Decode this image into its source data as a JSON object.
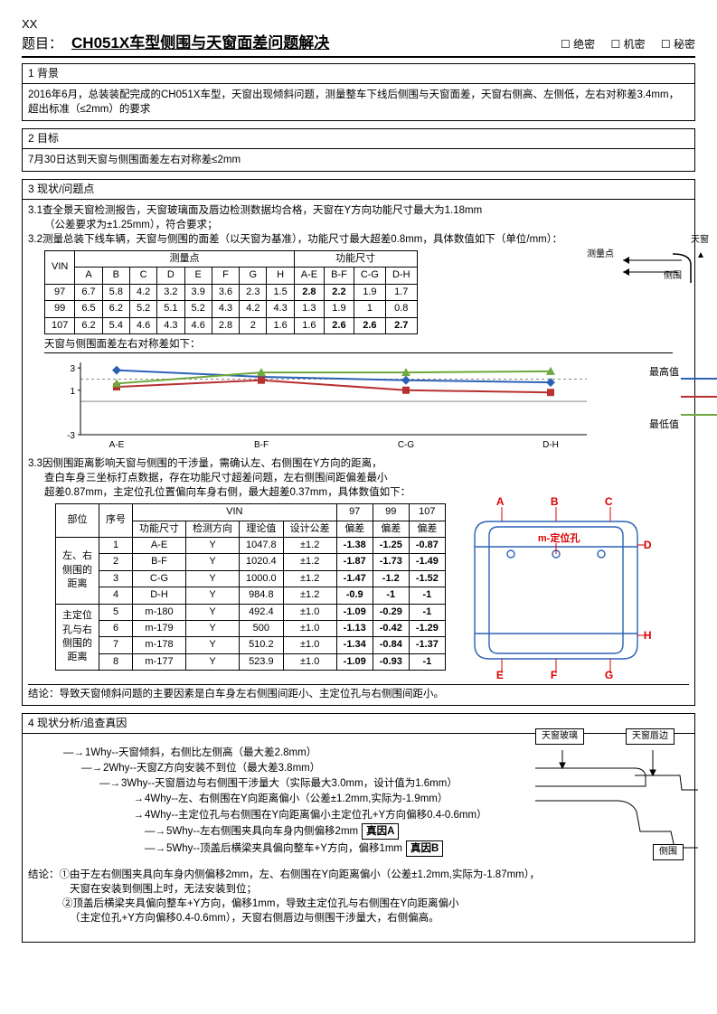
{
  "header": {
    "xx": "XX",
    "title_label": "题目：",
    "title": "CH051X车型侧围与天窗面差问题解决",
    "check1": "☐ 绝密",
    "check2": "☐ 机密",
    "check3": "☐ 秘密"
  },
  "s1": {
    "head": "1  背景",
    "body": "2016年6月，总装装配完成的CH051X车型，天窗出现倾斜问题，测量整车下线后侧围与天窗面差，天窗右侧高、左侧低，左右对称差3.4mm，超出标准（≤2mm）的要求"
  },
  "s2": {
    "head": "2  目标",
    "body": "7月30日达到天窗与侧围面差左右对称差≤2mm"
  },
  "s3": {
    "head": "3  现状/问题点",
    "l31": "3.1查全景天窗检测报告，天窗玻璃面及唇边检测数据均合格，天窗在Y方向功能尺寸最大为1.18mm",
    "l31b": "（公差要求为±1.25mm），符合要求；",
    "l32": "3.2测量总装下线车辆，天窗与侧围的面差（以天窗为基准），功能尺寸最大超差0.8mm，具体数值如下（单位/mm）：",
    "tbl1": {
      "h_vin": "VIN",
      "h_meas": "测量点",
      "h_func": "功能尺寸",
      "cols": [
        "A",
        "B",
        "C",
        "D",
        "E",
        "F",
        "G",
        "H",
        "A-E",
        "B-F",
        "C-G",
        "D-H"
      ],
      "rows": [
        {
          "vin": "97",
          "v": [
            "6.7",
            "5.8",
            "4.2",
            "3.2",
            "3.9",
            "3.6",
            "2.3",
            "1.5",
            "2.8",
            "2.2",
            "1.9",
            "1.7"
          ],
          "bold": [
            8,
            9
          ]
        },
        {
          "vin": "99",
          "v": [
            "6.5",
            "6.2",
            "5.2",
            "5.1",
            "5.2",
            "4.3",
            "4.2",
            "4.3",
            "1.3",
            "1.9",
            "1",
            "0.8"
          ],
          "bold": []
        },
        {
          "vin": "107",
          "v": [
            "6.2",
            "5.4",
            "4.6",
            "4.3",
            "4.6",
            "2.8",
            "2",
            "1.6",
            "1.6",
            "2.6",
            "2.6",
            "2.7"
          ],
          "bold": [
            9,
            10,
            11
          ]
        }
      ]
    },
    "diag_labels": {
      "tianchuang": "天窗",
      "celiangdian": "测量点",
      "cewei": "侧围"
    },
    "caption_sym": "天窗与侧围面差左右对称差如下：",
    "chart": {
      "xcats": [
        "A-E",
        "B-F",
        "C-G",
        "D-H"
      ],
      "ylabels": [
        "-3",
        "1",
        "3"
      ],
      "series": [
        {
          "color": "#2b62b5",
          "pts": [
            2.8,
            2.2,
            1.9,
            1.7
          ],
          "marker": "diamond"
        },
        {
          "color": "#b83030",
          "pts": [
            1.3,
            1.9,
            1.0,
            0.8
          ],
          "marker": "square"
        },
        {
          "color": "#6fa83e",
          "pts": [
            1.6,
            2.6,
            2.6,
            2.7
          ],
          "marker": "triangle"
        }
      ],
      "dash_y": 2,
      "leg_max": "最高值",
      "leg_min": "最低值"
    },
    "l33a": "3.3因侧围距离影响天窗与侧围的干涉量，需确认左、右侧围在Y方向的距离，",
    "l33b": "查白车身三坐标打点数据，存在功能尺寸超差问题，左右侧围间距偏差最小",
    "l33c": "超差0.87mm，主定位孔位置偏向车身右侧，最大超差0.37mm，具体数值如下：",
    "tbl2": {
      "h_vin": "VIN",
      "h_part": "部位",
      "h_seq": "序号",
      "h_func": "功能尺寸",
      "h_dir": "检测方向",
      "h_theory": "理论值",
      "h_tol": "设计公差",
      "h_97": "97",
      "h_99": "99",
      "h_107": "107",
      "h_dev": "偏差",
      "groups": [
        {
          "name": "左、右\n侧围的\n距离",
          "rows": [
            {
              "n": "1",
              "f": "A-E",
              "d": "Y",
              "t": "1047.8",
              "tol": "±1.2",
              "v97": "-1.38",
              "v99": "-1.25",
              "v107": "-0.87"
            },
            {
              "n": "2",
              "f": "B-F",
              "d": "Y",
              "t": "1020.4",
              "tol": "±1.2",
              "v97": "-1.87",
              "v99": "-1.73",
              "v107": "-1.49"
            },
            {
              "n": "3",
              "f": "C-G",
              "d": "Y",
              "t": "1000.0",
              "tol": "±1.2",
              "v97": "-1.47",
              "v99": "-1.2",
              "v107": "-1.52"
            },
            {
              "n": "4",
              "f": "D-H",
              "d": "Y",
              "t": "984.8",
              "tol": "±1.2",
              "v97": "-0.9",
              "v99": "-1",
              "v107": "-1"
            }
          ]
        },
        {
          "name": "主定位\n孔与右\n侧围的\n距离",
          "rows": [
            {
              "n": "5",
              "f": "m-180",
              "d": "Y",
              "t": "492.4",
              "tol": "±1.0",
              "v97": "-1.09",
              "v99": "-0.29",
              "v107": "-1"
            },
            {
              "n": "6",
              "f": "m-179",
              "d": "Y",
              "t": "500",
              "tol": "±1.0",
              "v97": "-1.13",
              "v99": "-0.42",
              "v107": "-1.29"
            },
            {
              "n": "7",
              "f": "m-178",
              "d": "Y",
              "t": "510.2",
              "tol": "±1.0",
              "v97": "-1.34",
              "v99": "-0.84",
              "v107": "-1.37"
            },
            {
              "n": "8",
              "f": "m-177",
              "d": "Y",
              "t": "523.9",
              "tol": "±1.0",
              "v97": "-1.09",
              "v99": "-0.93",
              "v107": "-1"
            }
          ]
        }
      ]
    },
    "chassis_labels": {
      "A": "A",
      "B": "B",
      "C": "C",
      "D": "D",
      "E": "E",
      "F": "F",
      "G": "G",
      "H": "H",
      "m": "m-定位孔"
    },
    "conclusion3": "结论：导致天窗倾斜问题的主要因素是白车身左右侧围间距小、主定位孔与右侧围间距小。"
  },
  "s4": {
    "head": "4  现状分析/追查真因",
    "why1": "1Why--天窗倾斜，右侧比左侧高（最大差2.8mm）",
    "why2": "2Why--天窗Z方向安装不到位（最大差3.8mm）",
    "why3": "3Why--天窗唇边与右侧围干涉量大（实际最大3.0mm，设计值为1.6mm）",
    "why4a": "4Why--左、右侧围在Y向距离偏小（公差±1.2mm,实际为-1.9mm）",
    "why4b": "4Why--主定位孔与右侧围在Y向距离偏小主定位孔+Y方向偏移0.4-0.6mm）",
    "why5a": "5Why--左右侧围夹具向车身内侧偏移2mm",
    "why5b": "5Why--顶盖后横梁夹具偏向整车+Y方向，偏移1mm",
    "causeA": "真因A",
    "causeB": "真因B",
    "diag4": {
      "glass": "天窗玻璃",
      "lip": "天窗唇边",
      "side": "侧围"
    },
    "conc1": "结论：①由于左右侧围夹具向车身内侧偏移2mm，左、右侧围在Y向距离偏小（公差±1.2mm,实际为-1.87mm），",
    "conc1b": "天窗在安装到侧围上时，无法安装到位；",
    "conc2": "②顶盖后横梁夹具偏向整车+Y方向，偏移1mm，导致主定位孔与右侧围在Y向距离偏小",
    "conc2b": "（主定位孔+Y方向偏移0.4-0.6mm），天窗右侧唇边与侧围干涉量大，右侧偏高。"
  }
}
